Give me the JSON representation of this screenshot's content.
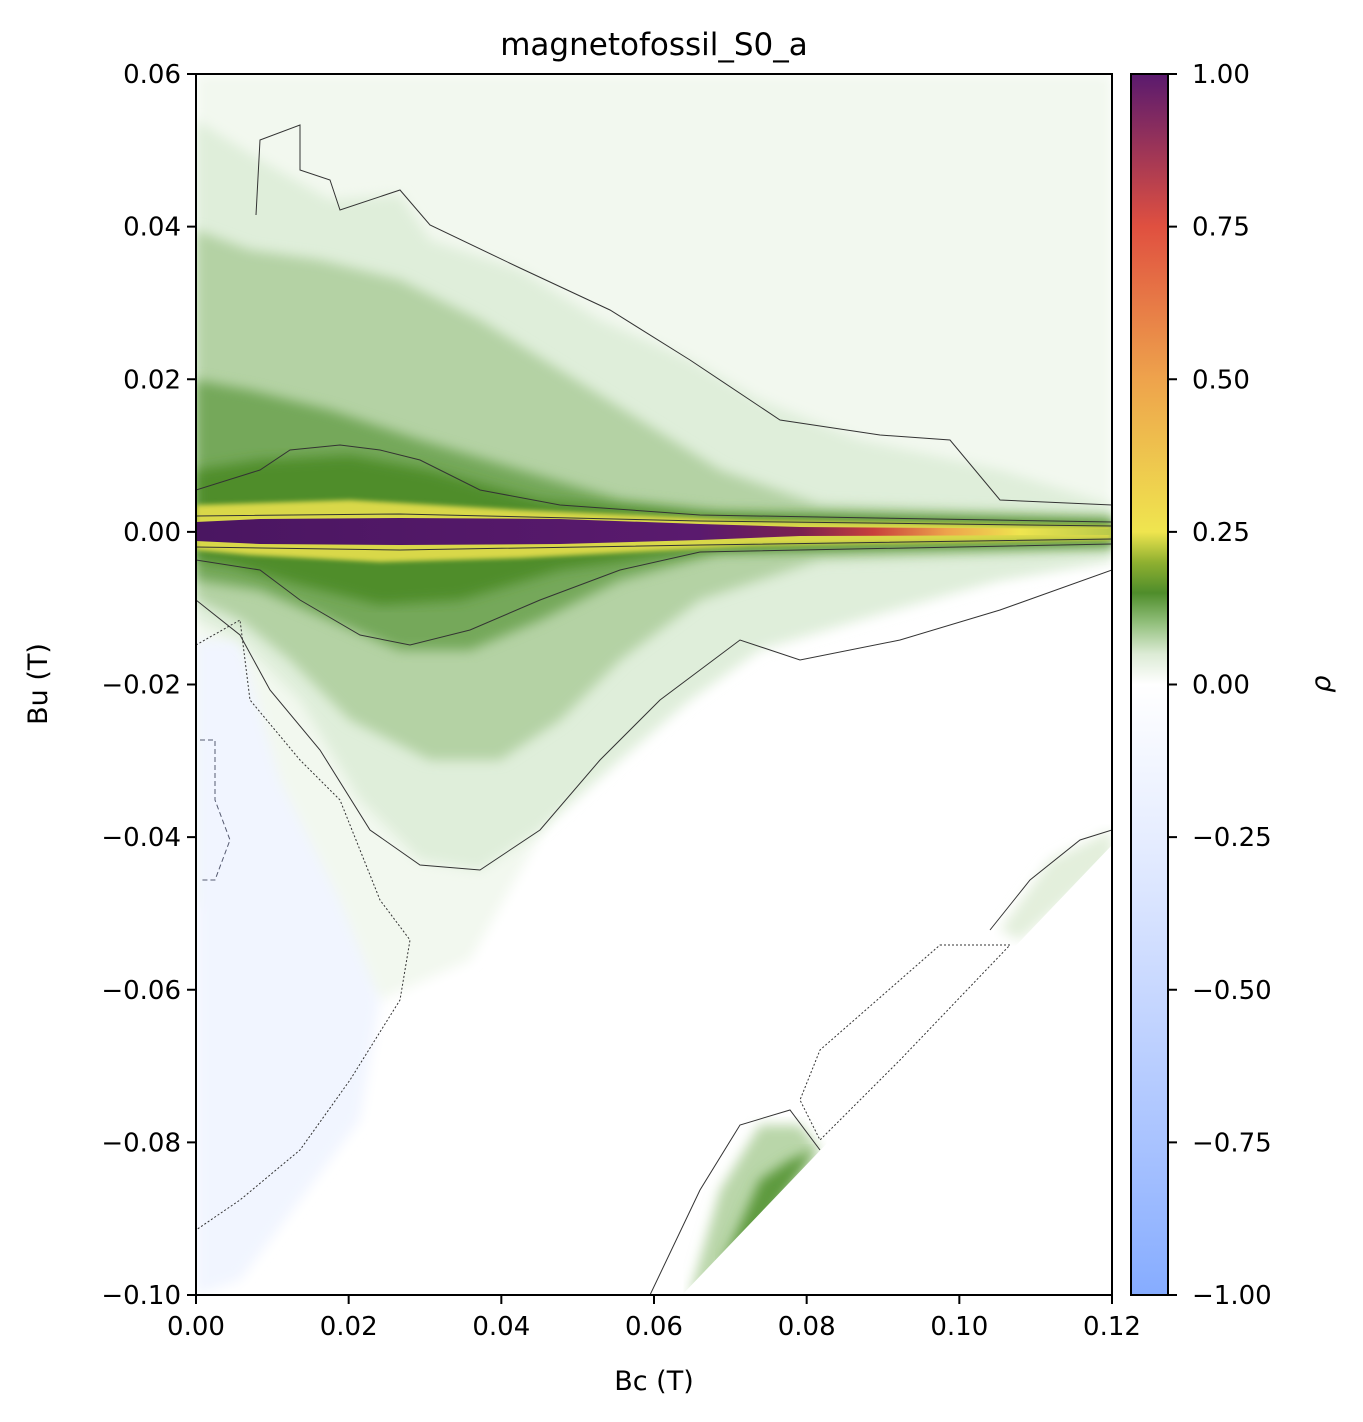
{
  "chart_data": {
    "type": "heatmap",
    "title": "magnetofossil_S0_a",
    "xlabel": "Bc (T)",
    "ylabel": "Bu (T)",
    "xlim": [
      0.0,
      0.12
    ],
    "ylim": [
      -0.1,
      0.06
    ],
    "x_ticks": [
      0.0,
      0.02,
      0.04,
      0.06,
      0.08,
      0.1,
      0.12
    ],
    "x_tick_labels": [
      "0.00",
      "0.02",
      "0.04",
      "0.06",
      "0.08",
      "0.10",
      "0.12"
    ],
    "y_ticks": [
      0.06,
      0.04,
      0.02,
      0.0,
      -0.02,
      -0.04,
      -0.06,
      -0.08,
      -0.1
    ],
    "y_tick_labels": [
      "0.06",
      "0.04",
      "0.02",
      "0.00",
      "−0.02",
      "−0.04",
      "−0.06",
      "−0.08",
      "−0.10"
    ],
    "colorbar": {
      "label": "ρ",
      "range": [
        -1.0,
        1.0
      ],
      "ticks": [
        1.0,
        0.75,
        0.5,
        0.25,
        0.0,
        -0.25,
        -0.5,
        -0.75,
        -1.0
      ],
      "tick_labels": [
        "1.00",
        "0.75",
        "0.50",
        "0.25",
        "0.00",
        "−0.25",
        "−0.50",
        "−0.75",
        "−1.00"
      ],
      "stops": [
        {
          "v": -1.0,
          "color": "#86acff"
        },
        {
          "v": -0.75,
          "color": "#a9c3ff"
        },
        {
          "v": -0.5,
          "color": "#c8d8ff"
        },
        {
          "v": -0.25,
          "color": "#e6edff"
        },
        {
          "v": 0.0,
          "color": "#ffffff"
        },
        {
          "v": 0.05,
          "color": "#dcebd5"
        },
        {
          "v": 0.1,
          "color": "#93c07d"
        },
        {
          "v": 0.15,
          "color": "#4f8d2b"
        },
        {
          "v": 0.2,
          "color": "#8fb030"
        },
        {
          "v": 0.25,
          "color": "#efe54f"
        },
        {
          "v": 0.5,
          "color": "#eea34c"
        },
        {
          "v": 0.75,
          "color": "#e05040"
        },
        {
          "v": 1.0,
          "color": "#5a1a6e"
        }
      ]
    },
    "grid": false
  }
}
